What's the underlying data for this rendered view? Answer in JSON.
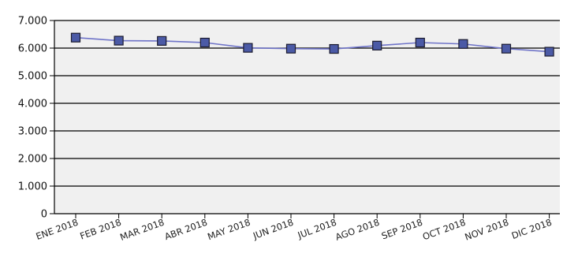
{
  "chart_data": {
    "type": "line",
    "title": "",
    "xlabel": "",
    "ylabel": "",
    "categories": [
      "ENE 2018",
      "FEB 2018",
      "MAR 2018",
      "ABR 2018",
      "MAY 2018",
      "JUN 2018",
      "JUL 2018",
      "AGO 2018",
      "SEP 2018",
      "OCT 2018",
      "NOV 2018",
      "DIC 2018"
    ],
    "series": [
      {
        "values": [
          6380,
          6270,
          6260,
          6200,
          6010,
          5980,
          5970,
          6090,
          6200,
          6150,
          5980,
          5870
        ]
      }
    ],
    "ylim": [
      0,
      7000
    ],
    "y_ticks": [
      0,
      1000,
      2000,
      3000,
      4000,
      5000,
      6000,
      7000
    ],
    "y_tick_labels": [
      "0",
      "1.000",
      "2.000",
      "3.000",
      "4.000",
      "5.000",
      "6.000",
      "7.000"
    ],
    "grid": "horizontal",
    "legend": "none",
    "colors": {
      "plot_background": "#f0f0f0",
      "grid_line": "#000000",
      "line": "#6f74c8",
      "marker_fill": "#4b5aa6",
      "marker_stroke": "#1a1a2e"
    }
  }
}
